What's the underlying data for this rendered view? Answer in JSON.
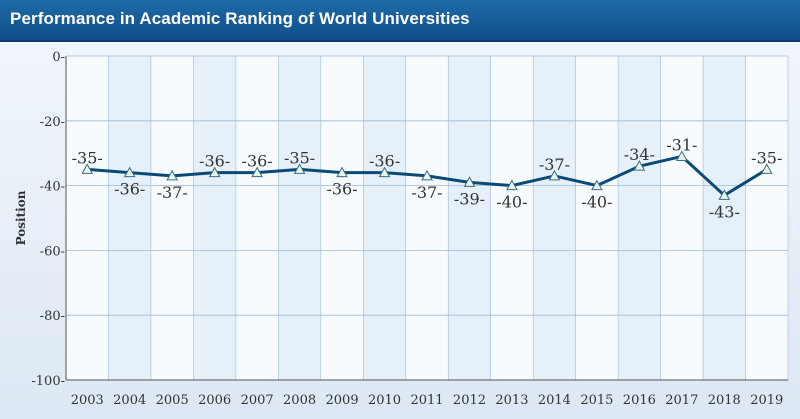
{
  "header": {
    "title": "Performance in Academic Ranking of World Universities"
  },
  "colors": {
    "line": "#0b4a77",
    "marker_fill": "#eaf6ea",
    "marker_stroke": "#3a6b8a",
    "band_a": "#f7fbfe",
    "band_b": "#e6f0f9",
    "grid": "#9fbad6"
  },
  "chart_data": {
    "type": "line",
    "title": "Performance in Academic Ranking of World Universities",
    "xlabel": "",
    "ylabel": "Position",
    "ylim": [
      -100,
      0
    ],
    "yticks": [
      0,
      -20,
      -40,
      -60,
      -80,
      -100
    ],
    "ytick_labels": [
      "0-",
      "-20-",
      "-40-",
      "-60-",
      "-80-",
      "-100-"
    ],
    "grid": true,
    "x": [
      "2003",
      "2004",
      "2005",
      "2006",
      "2007",
      "2008",
      "2009",
      "2010",
      "2011",
      "2012",
      "2013",
      "2014",
      "2015",
      "2016",
      "2017",
      "2018",
      "2019"
    ],
    "values": [
      -35,
      -36,
      -37,
      -36,
      -36,
      -35,
      -36,
      -36,
      -37,
      -39,
      -40,
      -37,
      -40,
      -34,
      -31,
      -43,
      -35
    ],
    "data_labels": [
      "-35-",
      "-36-",
      "-37-",
      "-36-",
      "-36-",
      "-35-",
      "-36-",
      "-36-",
      "-37-",
      "-39-",
      "-40-",
      "-37-",
      "-40-",
      "-34-",
      "-31-",
      "-43-",
      "-35-"
    ],
    "label_positions": [
      "above",
      "below",
      "below",
      "above",
      "above",
      "above",
      "below",
      "above",
      "below",
      "below",
      "below",
      "above",
      "below",
      "above",
      "above",
      "below",
      "above"
    ]
  }
}
